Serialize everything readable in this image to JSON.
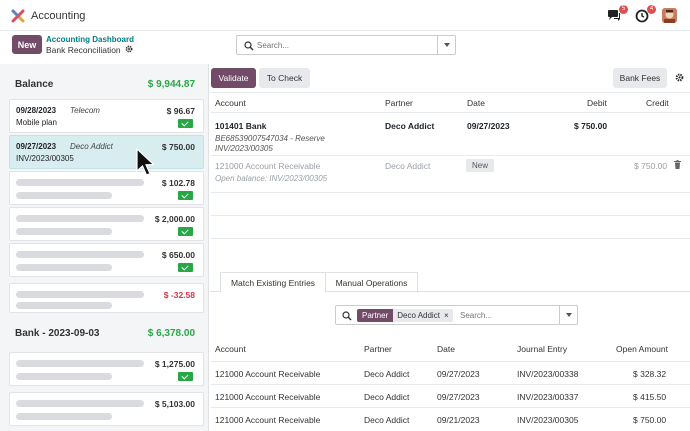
{
  "app": {
    "title": "Accounting",
    "chat_badge": "5",
    "activity_badge": "4"
  },
  "control": {
    "new_label": "New",
    "breadcrumb_parent": "Accounting Dashboard",
    "breadcrumb_current": "Bank Reconciliation",
    "search_placeholder": "Search..."
  },
  "left": {
    "journals": [
      {
        "name": "Balance",
        "balance": "$ 9,944.87"
      },
      {
        "name": "Bank - 2023-09-03",
        "balance": "$ 6,378.00"
      }
    ],
    "lines": [
      {
        "date": "09/28/2023",
        "partner": "Telecom",
        "label": "Mobile plan",
        "amount": "$ 96.67"
      },
      {
        "date": "09/27/2023",
        "partner": "Deco Addict",
        "label": "INV/2023/00305",
        "amount": "$ 750.00"
      },
      {
        "amount": "$ 102.78"
      },
      {
        "amount": "$ 2,000.00"
      },
      {
        "amount": "$ 650.00"
      },
      {
        "amount": "$ -32.58"
      },
      {
        "amount": "$ 1,275.00"
      },
      {
        "amount": "$ 5,103.00"
      }
    ]
  },
  "right": {
    "validate_label": "Validate",
    "to_check_label": "To Check",
    "bank_fees_label": "Bank Fees",
    "headers": {
      "account": "Account",
      "partner": "Partner",
      "date": "Date",
      "debit": "Debit",
      "credit": "Credit"
    },
    "line1": {
      "account": "101401 Bank",
      "ref1": "BE68539007547034 - Reserve",
      "ref2": "INV/2023/00305",
      "partner": "Deco Addict",
      "date": "09/27/2023",
      "debit": "$ 750.00"
    },
    "line2": {
      "account": "121000 Account Receivable",
      "open_balance": "Open balance: INV/2023/00305",
      "partner": "Deco Addict",
      "badge": "New",
      "credit": "$ 750.00"
    },
    "tabs": [
      "Match Existing Entries",
      "Manual Operations"
    ],
    "filter": {
      "facet_key": "Partner",
      "facet_value": "Deco Addict",
      "facet_remove": "×",
      "placeholder": "Search..."
    },
    "amls_headers": {
      "account": "Account",
      "partner": "Partner",
      "date": "Date",
      "journal_entry": "Journal Entry",
      "open_amount": "Open Amount"
    },
    "amls": [
      {
        "account": "121000 Account Receivable",
        "partner": "Deco Addict",
        "date": "09/27/2023",
        "entry": "INV/2023/00338",
        "amount": "$ 328.32"
      },
      {
        "account": "121000 Account Receivable",
        "partner": "Deco Addict",
        "date": "09/27/2023",
        "entry": "INV/2023/00337",
        "amount": "$ 415.50"
      },
      {
        "account": "121000 Account Receivable",
        "partner": "Deco Addict",
        "date": "09/21/2023",
        "entry": "INV/2023/00305",
        "amount": "$ 750.00"
      }
    ]
  }
}
